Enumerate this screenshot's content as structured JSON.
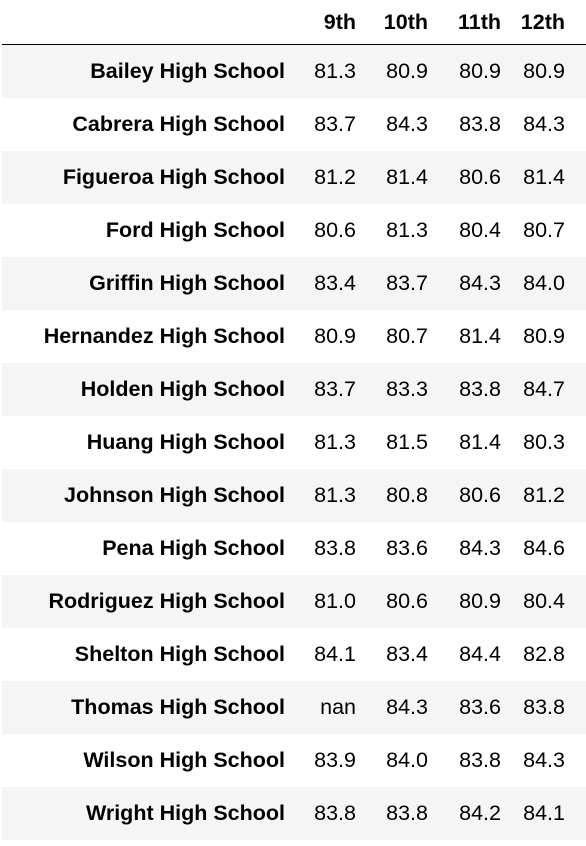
{
  "table": {
    "columns": [
      "9th",
      "10th",
      "11th",
      "12th"
    ],
    "rows": [
      {
        "school": "Bailey High School",
        "values": [
          "81.3",
          "80.9",
          "80.9",
          "80.9"
        ]
      },
      {
        "school": "Cabrera High School",
        "values": [
          "83.7",
          "84.3",
          "83.8",
          "84.3"
        ]
      },
      {
        "school": "Figueroa High School",
        "values": [
          "81.2",
          "81.4",
          "80.6",
          "81.4"
        ]
      },
      {
        "school": "Ford High School",
        "values": [
          "80.6",
          "81.3",
          "80.4",
          "80.7"
        ]
      },
      {
        "school": "Griffin High School",
        "values": [
          "83.4",
          "83.7",
          "84.3",
          "84.0"
        ]
      },
      {
        "school": "Hernandez High School",
        "values": [
          "80.9",
          "80.7",
          "81.4",
          "80.9"
        ]
      },
      {
        "school": "Holden High School",
        "values": [
          "83.7",
          "83.3",
          "83.8",
          "84.7"
        ]
      },
      {
        "school": "Huang High School",
        "values": [
          "81.3",
          "81.5",
          "81.4",
          "80.3"
        ]
      },
      {
        "school": "Johnson High School",
        "values": [
          "81.3",
          "80.8",
          "80.6",
          "81.2"
        ]
      },
      {
        "school": "Pena High School",
        "values": [
          "83.8",
          "83.6",
          "84.3",
          "84.6"
        ]
      },
      {
        "school": "Rodriguez High School",
        "values": [
          "81.0",
          "80.6",
          "80.9",
          "80.4"
        ]
      },
      {
        "school": "Shelton High School",
        "values": [
          "84.1",
          "83.4",
          "84.4",
          "82.8"
        ]
      },
      {
        "school": "Thomas High School",
        "values": [
          "nan",
          "84.3",
          "83.6",
          "83.8"
        ]
      },
      {
        "school": "Wilson High School",
        "values": [
          "83.9",
          "84.0",
          "83.8",
          "84.3"
        ]
      },
      {
        "school": "Wright High School",
        "values": [
          "83.8",
          "83.8",
          "84.2",
          "84.1"
        ]
      }
    ]
  },
  "colors": {
    "stripe": "#f5f5f5",
    "text": "#000000",
    "header_rule": "#000000"
  }
}
